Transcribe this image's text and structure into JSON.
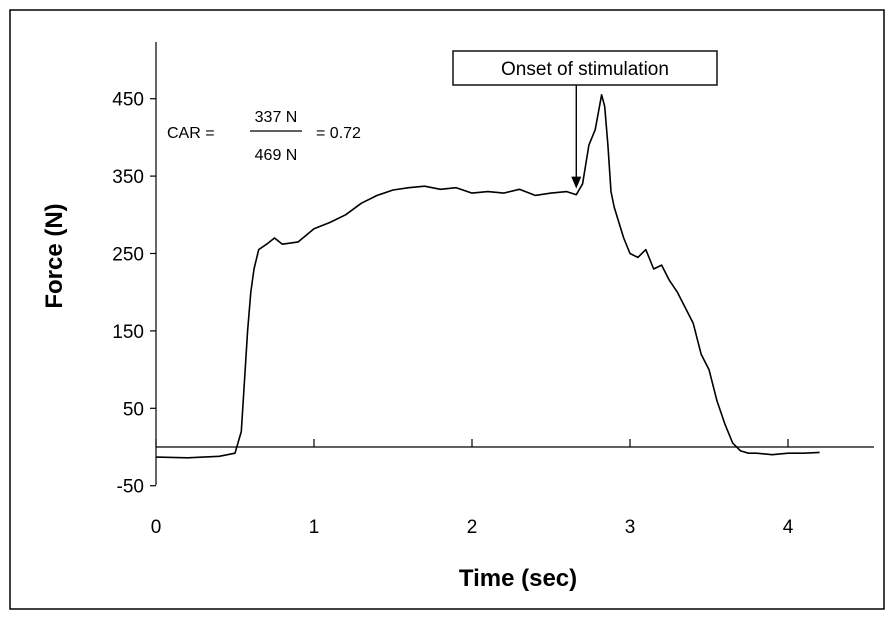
{
  "chart_data": {
    "type": "line",
    "title": "",
    "xlabel": "Time (sec)",
    "ylabel": "Force (N)",
    "xlim": [
      0,
      4.5
    ],
    "ylim": [
      -50,
      530
    ],
    "x_ticks": [
      0,
      1,
      2,
      3,
      4
    ],
    "y_ticks": [
      -50,
      50,
      150,
      250,
      350,
      450
    ],
    "x_tick_labels": [
      "0",
      "1",
      "2",
      "3",
      "4"
    ],
    "y_tick_labels": [
      "-50",
      "50",
      "150",
      "250",
      "350",
      "450"
    ],
    "baseline_y": 0,
    "grid": false,
    "series": [
      {
        "color": "#000000",
        "x": [
          0,
          0.2,
          0.4,
          0.5,
          0.54,
          0.58,
          0.6,
          0.62,
          0.65,
          0.7,
          0.75,
          0.8,
          0.9,
          1.0,
          1.1,
          1.2,
          1.3,
          1.4,
          1.5,
          1.6,
          1.7,
          1.8,
          1.9,
          2.0,
          2.1,
          2.2,
          2.3,
          2.4,
          2.5,
          2.6,
          2.66,
          2.7,
          2.74,
          2.78,
          2.82,
          2.84,
          2.86,
          2.88,
          2.9,
          2.93,
          2.96,
          3.0,
          3.05,
          3.1,
          3.15,
          3.2,
          3.25,
          3.3,
          3.35,
          3.4,
          3.45,
          3.5,
          3.55,
          3.6,
          3.65,
          3.7,
          3.75,
          3.8,
          3.9,
          4.0,
          4.1,
          4.2
        ],
        "y": [
          -13,
          -14,
          -12,
          -8,
          20,
          150,
          200,
          230,
          255,
          262,
          270,
          262,
          265,
          282,
          290,
          300,
          315,
          325,
          332,
          335,
          337,
          333,
          335,
          328,
          330,
          328,
          333,
          325,
          328,
          330,
          326,
          340,
          390,
          410,
          455,
          440,
          390,
          330,
          310,
          290,
          270,
          250,
          245,
          255,
          230,
          235,
          215,
          200,
          180,
          160,
          120,
          100,
          60,
          30,
          5,
          -5,
          -8,
          -8,
          -10,
          -8,
          -8,
          -7
        ]
      }
    ],
    "annotations": [
      {
        "text": "Onset of stimulation",
        "x": 2.66,
        "y": 326
      }
    ]
  },
  "formula": {
    "lhs": "CAR =",
    "numerator": "337 N",
    "denominator": "469 N",
    "rhs": "= 0.72"
  }
}
